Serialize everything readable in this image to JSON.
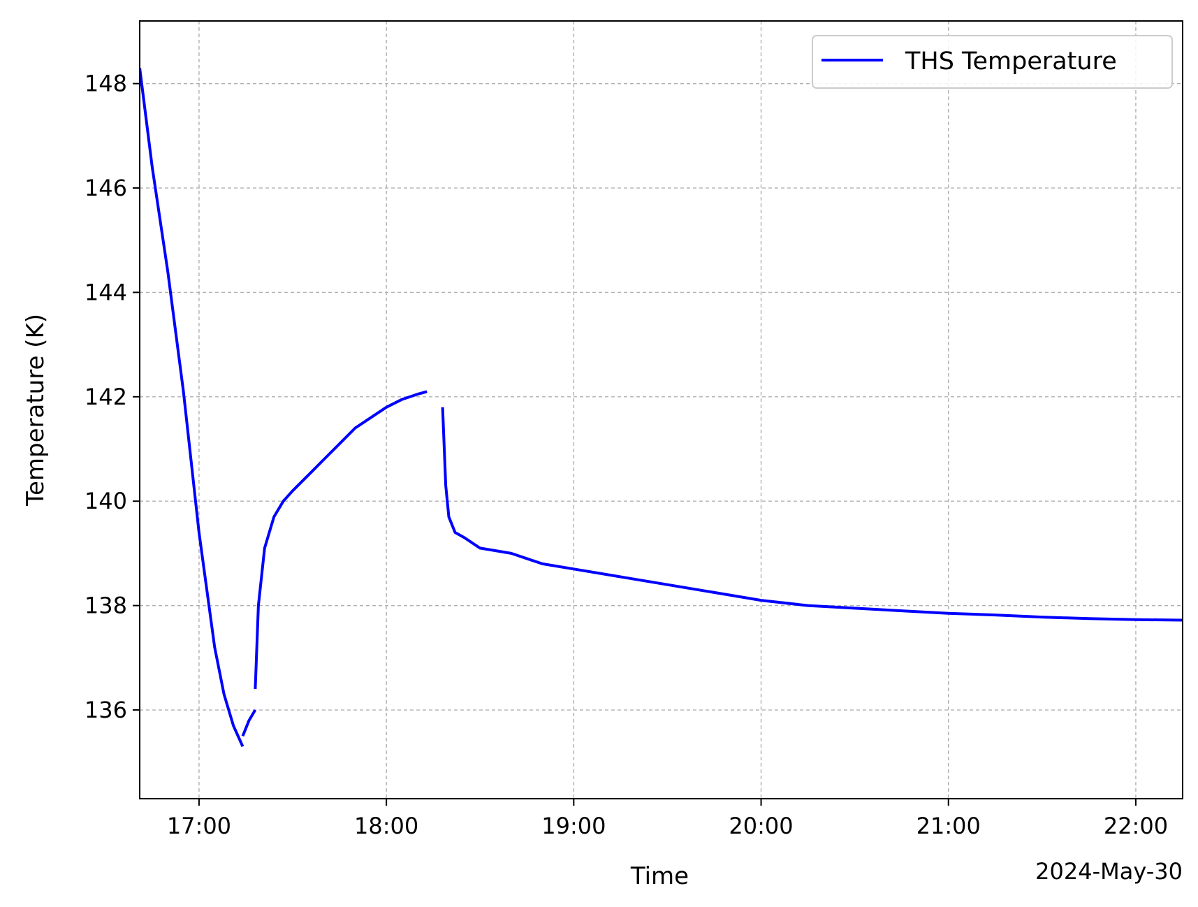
{
  "chart_data": {
    "type": "line",
    "xlabel": "Time",
    "ylabel": "Temperature (K)",
    "date_label": "2024-May-30",
    "x_unit": "time of day (HH:MM), 2024-05-30",
    "xlim": [
      "16:41",
      "22:15"
    ],
    "ylim": [
      134.3,
      149.2
    ],
    "x_ticks": [
      "17:00",
      "18:00",
      "19:00",
      "20:00",
      "21:00",
      "22:00"
    ],
    "y_ticks": [
      136,
      138,
      140,
      142,
      144,
      146,
      148
    ],
    "grid": true,
    "legend": {
      "position": "top-right",
      "entries": [
        "THS Temperature"
      ]
    },
    "series": [
      {
        "name": "THS Temperature",
        "color": "#0000ff",
        "segments": [
          [
            [
              "16:41",
              148.3
            ],
            [
              "16:45",
              146.4
            ],
            [
              "16:50",
              144.4
            ],
            [
              "16:55",
              142.1
            ],
            [
              "17:00",
              139.4
            ],
            [
              "17:05",
              137.2
            ],
            [
              "17:08",
              136.3
            ],
            [
              "17:11",
              135.7
            ],
            [
              "17:14",
              135.3
            ]
          ],
          [
            [
              "17:14",
              135.5
            ],
            [
              "17:16",
              135.8
            ],
            [
              "17:18",
              136.0
            ]
          ],
          [
            [
              "17:18",
              136.4
            ],
            [
              "17:19",
              138.0
            ],
            [
              "17:21",
              139.1
            ],
            [
              "17:24",
              139.7
            ],
            [
              "17:27",
              140.0
            ],
            [
              "17:30",
              140.2
            ],
            [
              "17:35",
              140.5
            ],
            [
              "17:40",
              140.8
            ],
            [
              "17:45",
              141.1
            ],
            [
              "17:50",
              141.4
            ],
            [
              "17:55",
              141.6
            ],
            [
              "18:00",
              141.8
            ],
            [
              "18:05",
              141.95
            ],
            [
              "18:10",
              142.05
            ],
            [
              "18:13",
              142.1
            ]
          ],
          [
            [
              "18:18",
              141.8
            ],
            [
              "18:19",
              140.3
            ],
            [
              "18:20",
              139.7
            ],
            [
              "18:22",
              139.4
            ],
            [
              "18:25",
              139.3
            ],
            [
              "18:30",
              139.1
            ],
            [
              "18:40",
              139.0
            ],
            [
              "18:50",
              138.8
            ],
            [
              "19:00",
              138.7
            ],
            [
              "19:15",
              138.55
            ],
            [
              "19:30",
              138.4
            ],
            [
              "19:45",
              138.25
            ],
            [
              "20:00",
              138.1
            ],
            [
              "20:15",
              138.0
            ],
            [
              "20:30",
              137.95
            ],
            [
              "20:45",
              137.9
            ],
            [
              "21:00",
              137.85
            ],
            [
              "21:15",
              137.82
            ],
            [
              "21:30",
              137.78
            ],
            [
              "21:45",
              137.75
            ],
            [
              "22:00",
              137.73
            ],
            [
              "22:15",
              137.72
            ]
          ]
        ]
      }
    ]
  }
}
